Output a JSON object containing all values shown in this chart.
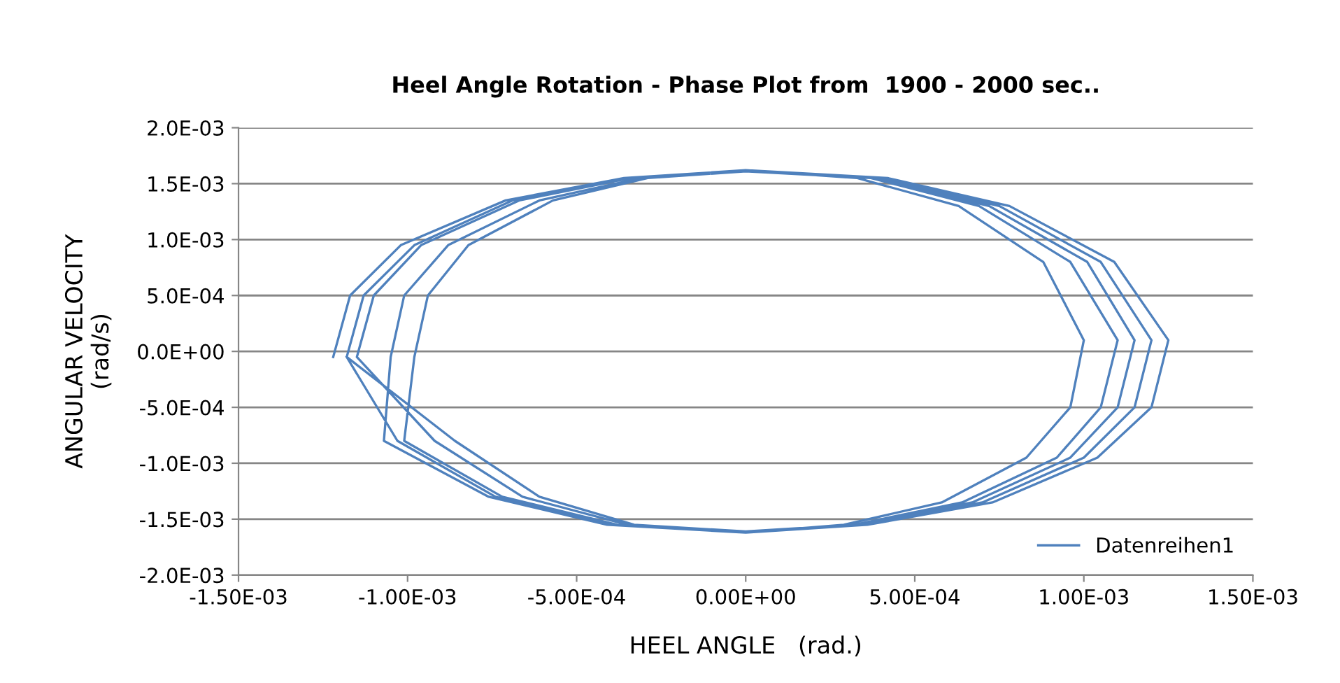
{
  "chart_data": {
    "type": "line",
    "title": "Heel Angle Rotation - Phase Plot from  1900 - 2000 sec..",
    "xlabel": "HEEL ANGLE   (rad.)",
    "ylabel": "ANGULAR VELOCITY\n(rad/s)",
    "xlim": [
      -0.0015,
      0.0015
    ],
    "ylim": [
      -0.002,
      0.002
    ],
    "xticks": [
      {
        "value": -0.0015,
        "label": "-1.50E-03"
      },
      {
        "value": -0.001,
        "label": "-1.00E-03"
      },
      {
        "value": -0.0005,
        "label": "-5.00E-04"
      },
      {
        "value": 0,
        "label": "0.00E+00"
      },
      {
        "value": 0.0005,
        "label": "5.00E-04"
      },
      {
        "value": 0.001,
        "label": "1.00E-03"
      },
      {
        "value": 0.0015,
        "label": "1.50E-03"
      }
    ],
    "yticks": [
      {
        "value": -0.002,
        "label": "-2.0E-03"
      },
      {
        "value": -0.0015,
        "label": "-1.5E-03"
      },
      {
        "value": -0.001,
        "label": "-1.0E-03"
      },
      {
        "value": -0.0005,
        "label": "-5.0E-04"
      },
      {
        "value": 0,
        "label": "0.0E+00"
      },
      {
        "value": 0.0005,
        "label": "5.0E-04"
      },
      {
        "value": 0.001,
        "label": "1.0E-03"
      },
      {
        "value": 0.0015,
        "label": "1.5E-03"
      },
      {
        "value": 0.002,
        "label": "2.0E-03"
      }
    ],
    "grid": "y",
    "legend": "bottom right",
    "marker": "none",
    "line_style": "solid",
    "series": [
      {
        "name": "Datenreihen1",
        "color": "#4f81bd",
        "x": [
          -0.00122,
          -0.00117,
          -0.00102,
          -0.00071,
          -0.00036,
          0,
          0.00042,
          0.00078,
          0.00109,
          0.00125,
          0.0012,
          0.00104,
          0.00073,
          0.00036,
          0,
          -0.00041,
          -0.00076,
          -0.00107,
          -0.00105,
          -0.00101,
          -0.00088,
          -0.00061,
          -0.00031,
          0,
          0.00037,
          0.00069,
          0.00096,
          0.0011,
          0.00105,
          0.00092,
          0.00064,
          0.00032,
          0,
          -0.00035,
          -0.00066,
          -0.00092,
          -0.00115,
          -0.0011,
          -0.00096,
          -0.00067,
          -0.00034,
          0,
          0.00033,
          0.00063,
          0.00088,
          0.001,
          0.00096,
          0.00083,
          0.00058,
          0.00029,
          0,
          -0.00038,
          -0.00072,
          -0.00101,
          -0.00098,
          -0.00094,
          -0.00082,
          -0.00057,
          -0.00029,
          0,
          0.0004,
          0.00075,
          0.00105,
          0.0012,
          0.00115,
          0.001,
          0.0007,
          0.00035,
          0,
          -0.00033,
          -0.00061,
          -0.00086,
          -0.00118,
          -0.00113,
          -0.00098,
          -0.00069,
          -0.00034,
          0,
          0.00038,
          0.00072,
          0.00101,
          0.00115,
          0.0011,
          0.00096,
          0.00067,
          0.00034,
          0,
          -0.00039,
          -0.00074,
          -0.00103,
          -0.00118
        ],
        "values": [
          -5e-05,
          0.0005,
          0.00095,
          0.00135,
          0.00155,
          0.00162,
          0.00155,
          0.0013,
          0.0008,
          0.0001,
          -0.0005,
          -0.00095,
          -0.00135,
          -0.00155,
          -0.00162,
          -0.00155,
          -0.0013,
          -0.0008,
          -5e-05,
          0.0005,
          0.00095,
          0.00135,
          0.00155,
          0.00161,
          0.00155,
          0.0013,
          0.0008,
          0.0001,
          -0.0005,
          -0.00095,
          -0.00135,
          -0.00155,
          -0.00161,
          -0.00155,
          -0.0013,
          -0.0008,
          -5e-05,
          0.0005,
          0.00095,
          0.00135,
          0.00155,
          0.00162,
          0.00155,
          0.0013,
          0.0008,
          0.0001,
          -0.0005,
          -0.00095,
          -0.00135,
          -0.00155,
          -0.00162,
          -0.00155,
          -0.0013,
          -0.0008,
          -5e-05,
          0.0005,
          0.00095,
          0.00135,
          0.00155,
          0.00161,
          0.00155,
          0.0013,
          0.0008,
          0.0001,
          -0.0005,
          -0.00095,
          -0.00135,
          -0.00155,
          -0.00161,
          -0.00155,
          -0.0013,
          -0.0008,
          -5e-05,
          0.0005,
          0.00095,
          0.00135,
          0.00155,
          0.00162,
          0.00155,
          0.0013,
          0.0008,
          0.0001,
          -0.0005,
          -0.00095,
          -0.00135,
          -0.00155,
          -0.00162,
          -0.00155,
          -0.0013,
          -0.0008,
          -5e-05
        ]
      }
    ]
  }
}
